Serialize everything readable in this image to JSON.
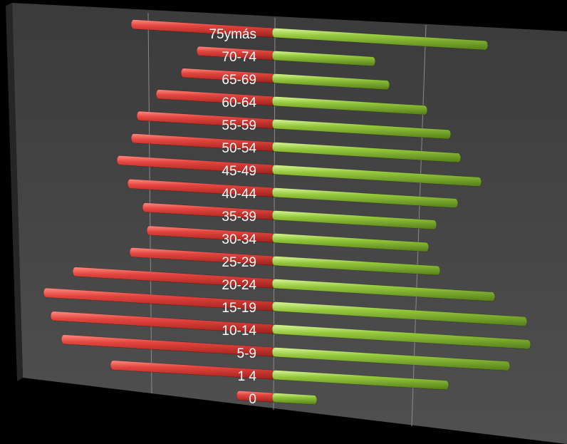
{
  "chart_data": {
    "type": "bar",
    "orientation": "horizontal",
    "style": "population-pyramid-3d",
    "categories": [
      "75ymás",
      "70-74",
      "65-69",
      "60-64",
      "55-59",
      "50-54",
      "45-49",
      "40-44",
      "35-39",
      "30-34",
      "25-29",
      "20-24",
      "15-19",
      "10-14",
      "5-9",
      "1 4",
      "0"
    ],
    "series": [
      {
        "values": [
          -198,
          -106,
          -128,
          -163,
          -190,
          -198,
          -218,
          -203,
          -182,
          -176,
          -200,
          -280,
          -321,
          -311,
          -296,
          -227,
          -50
        ]
      },
      {
        "values": [
          295,
          137,
          157,
          210,
          243,
          257,
          286,
          253,
          223,
          212,
          228,
          305,
          350,
          355,
          326,
          240,
          55
        ]
      }
    ],
    "colors": {
      "left": "#d93b35",
      "right": "#8fc43a"
    },
    "grid": true,
    "legend": "none"
  }
}
